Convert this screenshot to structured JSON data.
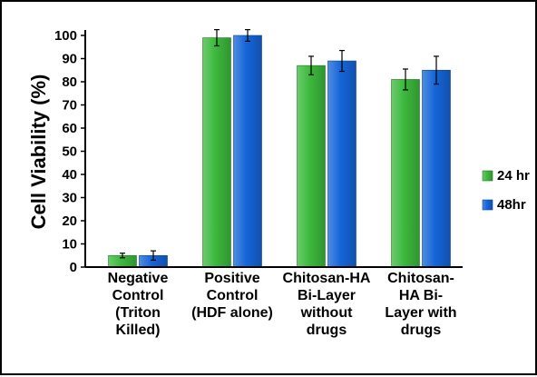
{
  "chart_data": {
    "type": "bar",
    "title": "",
    "xlabel": "",
    "ylabel": "Cell Viability (%)",
    "ylim": [
      0,
      100
    ],
    "yticks": [
      0,
      10,
      20,
      30,
      40,
      50,
      60,
      70,
      80,
      90,
      100
    ],
    "grid": false,
    "legend_position": "right",
    "categories": [
      [
        "Negative",
        "Control",
        "(Triton",
        "Killed)"
      ],
      [
        "Positive",
        "Control",
        "(HDF alone)"
      ],
      [
        "Chitosan-HA",
        "Bi-Layer",
        "without",
        "drugs"
      ],
      [
        "Chitosan-",
        "HA Bi-",
        "Layer with",
        "drugs"
      ]
    ],
    "series": [
      {
        "name": "24 hr",
        "color": "#3cb93c",
        "values": [
          5,
          99,
          87,
          81
        ],
        "errors": [
          1,
          3.5,
          4,
          4.5
        ]
      },
      {
        "name": "48hr",
        "color": "#1565d8",
        "values": [
          5,
          100,
          89,
          85
        ],
        "errors": [
          2,
          2.5,
          4.5,
          6
        ]
      }
    ]
  }
}
